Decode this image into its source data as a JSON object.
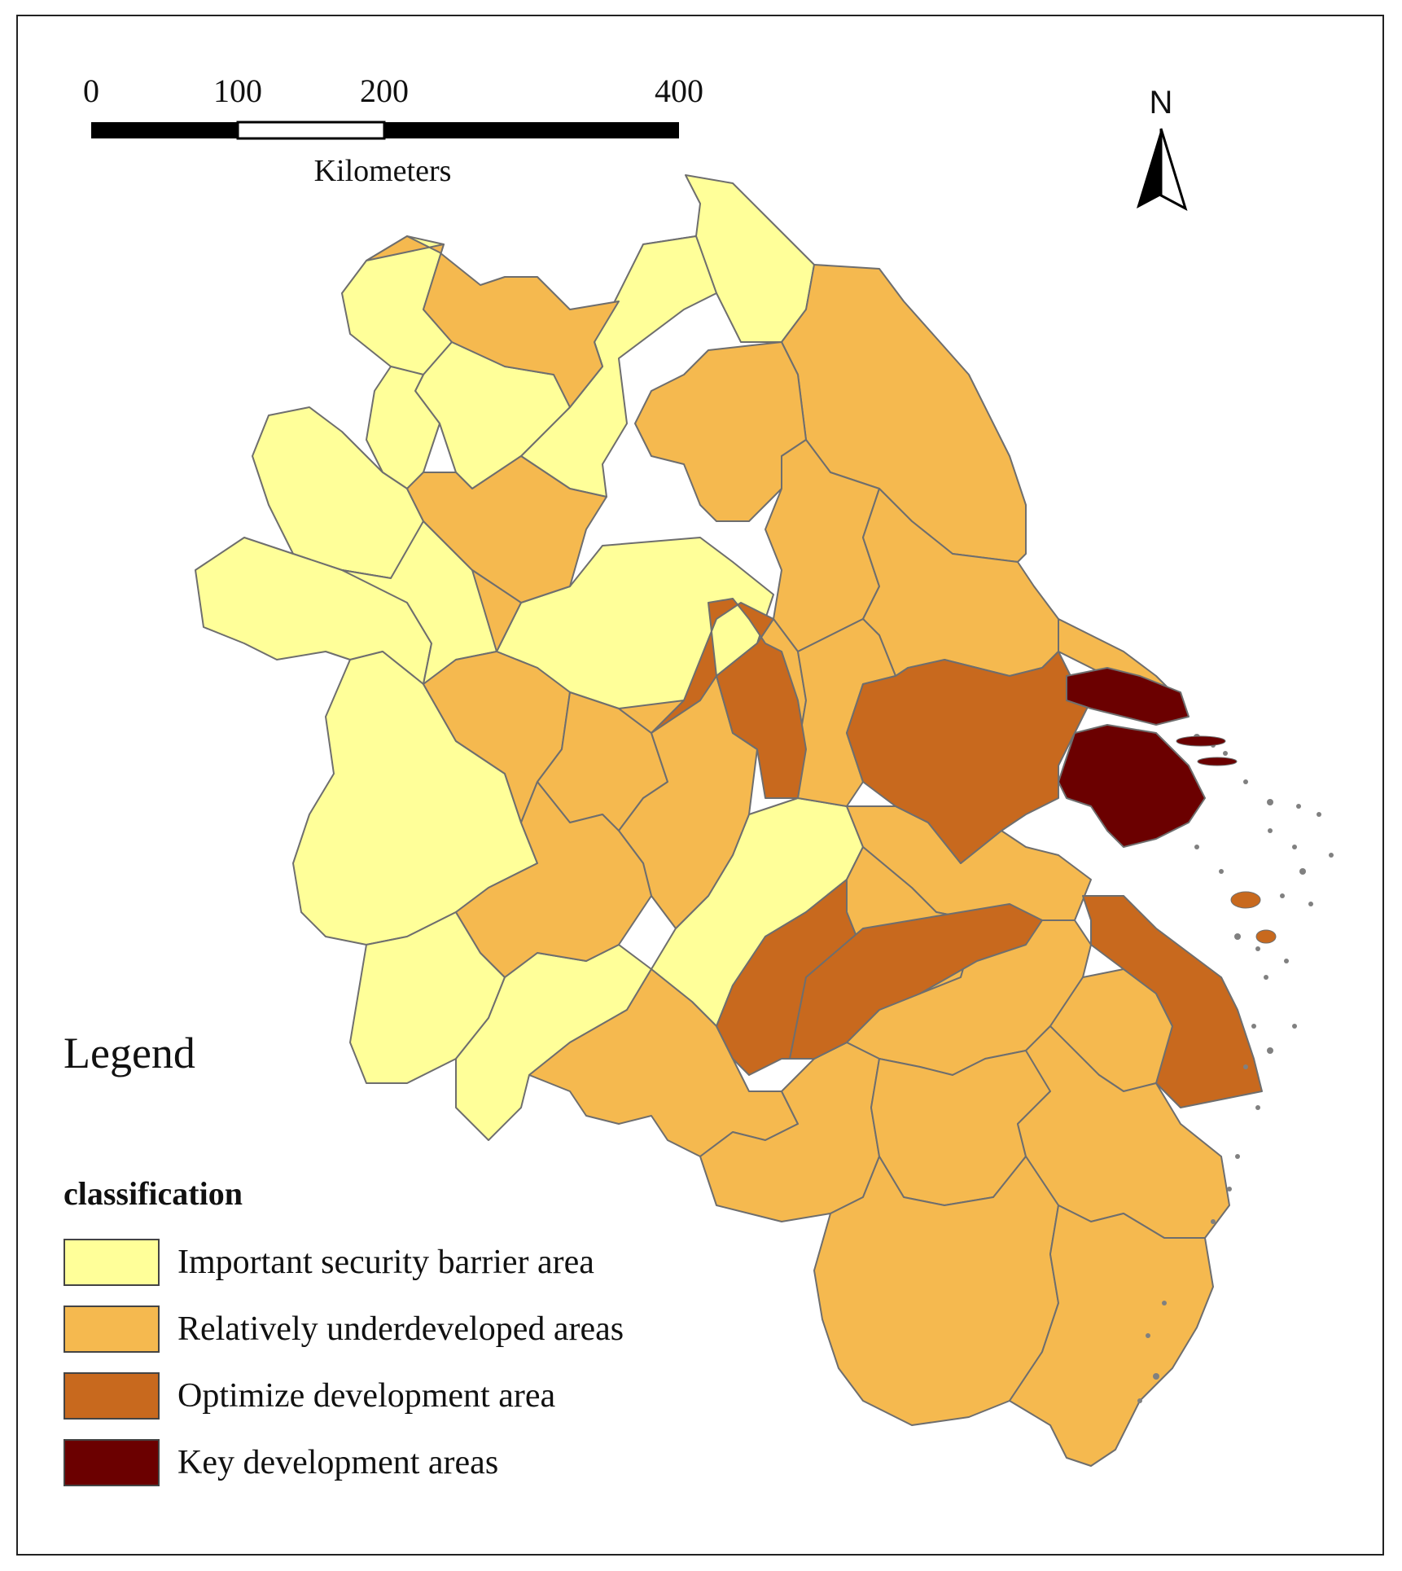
{
  "scale_bar": {
    "ticks": [
      "0",
      "100",
      "200",
      "400"
    ],
    "unit": "Kilometers"
  },
  "north_arrow": {
    "letter": "N",
    "icon": "north-arrow-icon"
  },
  "legend": {
    "title": "Legend",
    "subtitle": "classification",
    "items": [
      {
        "label": "Important security barrier area",
        "color": "#ffff99"
      },
      {
        "label": "Relatively underdeveloped areas",
        "color": "#f5b94f"
      },
      {
        "label": "Optimize development area",
        "color": "#c8691e"
      },
      {
        "label": "Key development areas",
        "color": "#6b0000"
      }
    ]
  },
  "map": {
    "region_outline_color": "#6e6e6e",
    "island_color": "#808080"
  }
}
